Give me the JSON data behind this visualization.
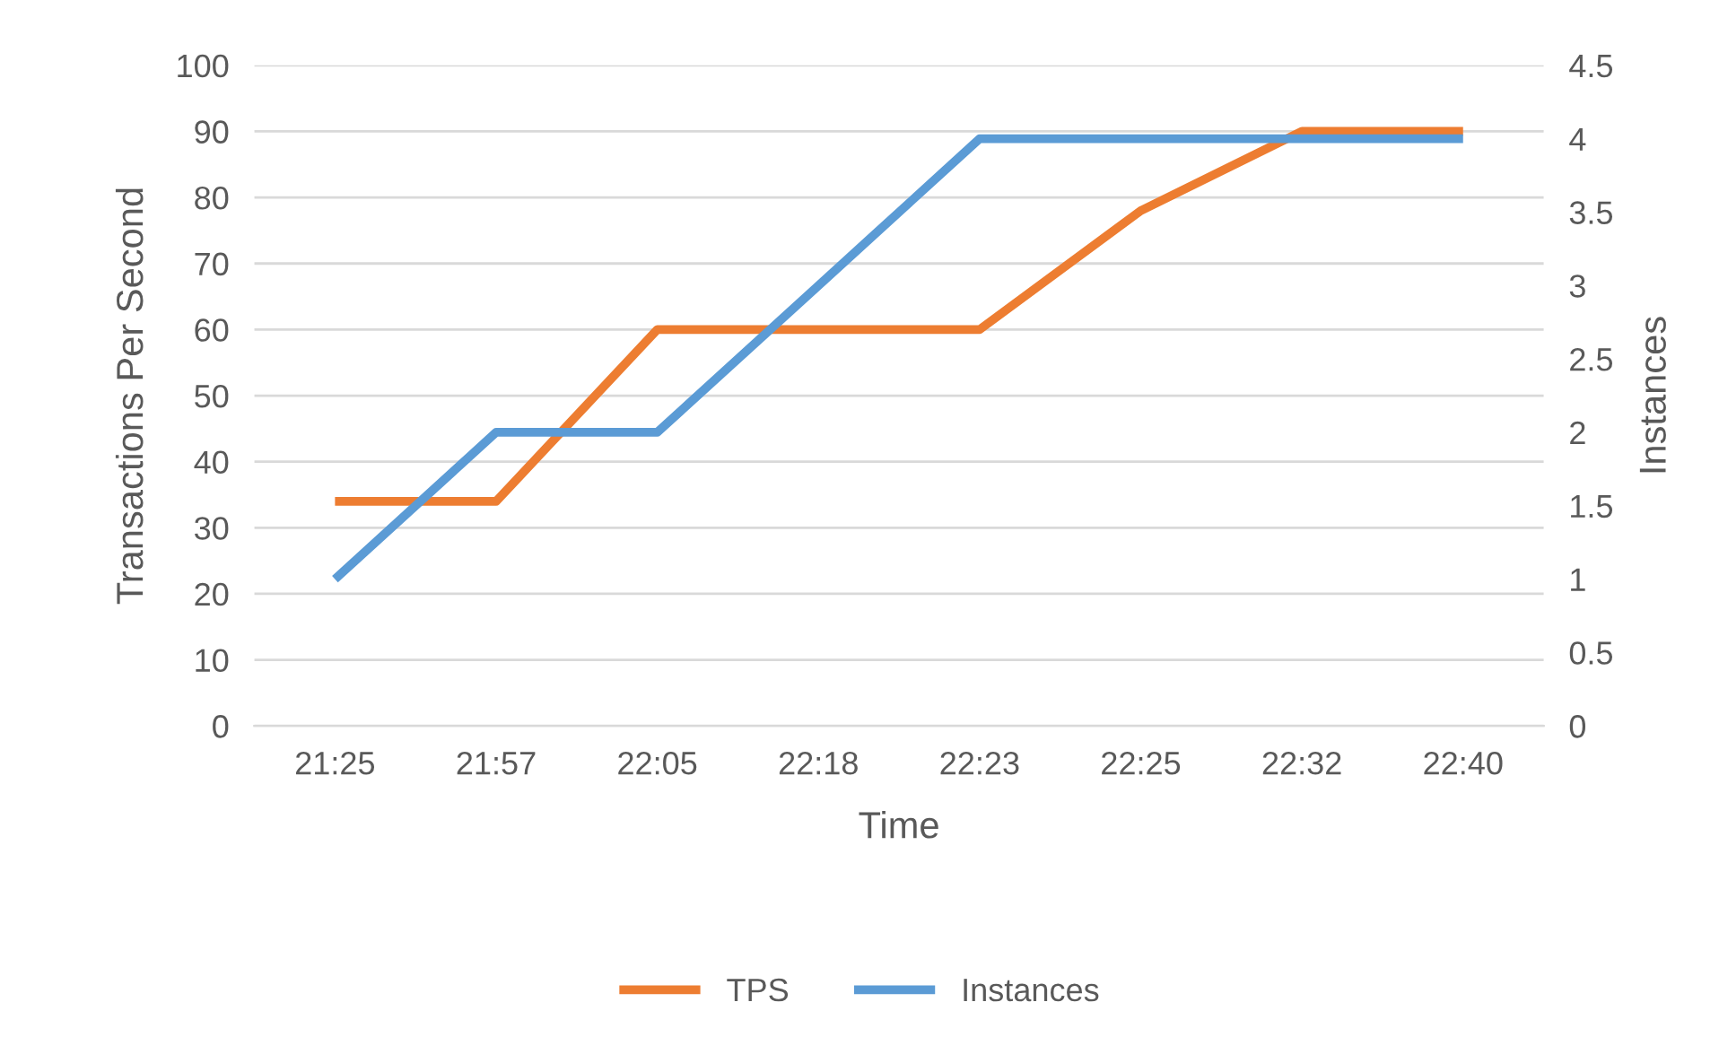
{
  "chart_data": {
    "type": "line",
    "xlabel": "Time",
    "ylabel": "Transactions Per Second",
    "y2label": "Instances",
    "categories": [
      "21:25",
      "21:57",
      "22:05",
      "22:18",
      "22:23",
      "22:25",
      "22:32",
      "22:40"
    ],
    "series": [
      {
        "name": "TPS",
        "color": "#ed7d31",
        "values": [
          34,
          34,
          60,
          60,
          60,
          78,
          90,
          90
        ]
      },
      {
        "name": "Instances",
        "color": "#5b9bd5",
        "axis": "y2",
        "values": [
          1,
          2,
          2,
          3,
          4,
          4,
          4,
          4
        ]
      }
    ],
    "ylim": [
      0,
      100
    ],
    "yticks": [
      0,
      10,
      20,
      30,
      40,
      50,
      60,
      70,
      80,
      90,
      100
    ],
    "y2lim": [
      0,
      4.5
    ],
    "y2ticks": [
      0,
      0.5,
      1,
      1.5,
      2,
      2.5,
      3,
      3.5,
      4,
      4.5
    ],
    "grid": "y",
    "legend": "bottom",
    "marker": "none",
    "line_style": "solid"
  }
}
